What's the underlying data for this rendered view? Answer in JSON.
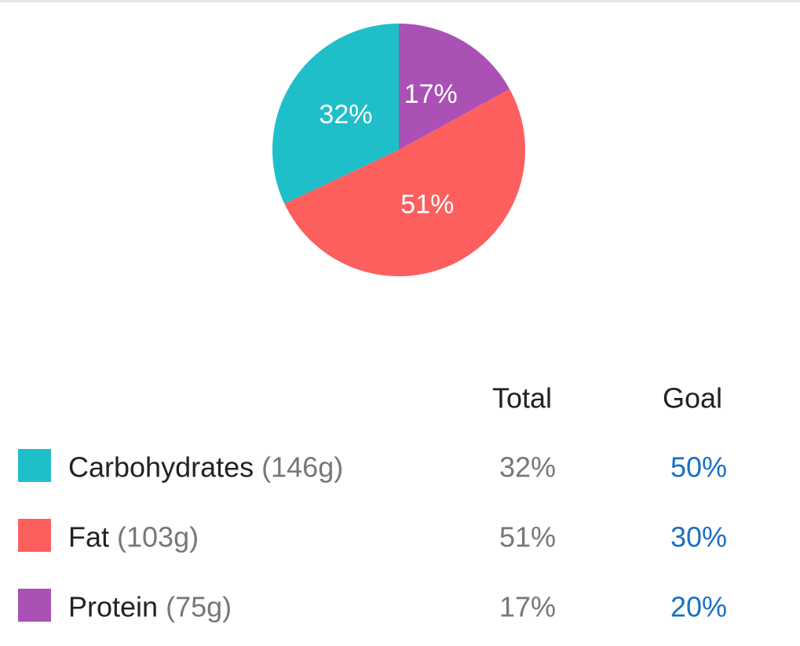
{
  "chart_data": {
    "type": "pie",
    "categories": [
      "Carbohydrates",
      "Fat",
      "Protein"
    ],
    "values": [
      32,
      51,
      17
    ],
    "value_labels": [
      "32%",
      "51%",
      "17%"
    ],
    "colors": [
      "#1fbfca",
      "#fd5f5f",
      "#ab51b5"
    ]
  },
  "table": {
    "columns": [
      "Total",
      "Goal"
    ],
    "rows": [
      {
        "amount": "(146g)",
        "goal": "50%"
      },
      {
        "amount": "(103g)",
        "goal": "30%"
      },
      {
        "amount": "(75g)",
        "goal": "20%"
      }
    ]
  }
}
